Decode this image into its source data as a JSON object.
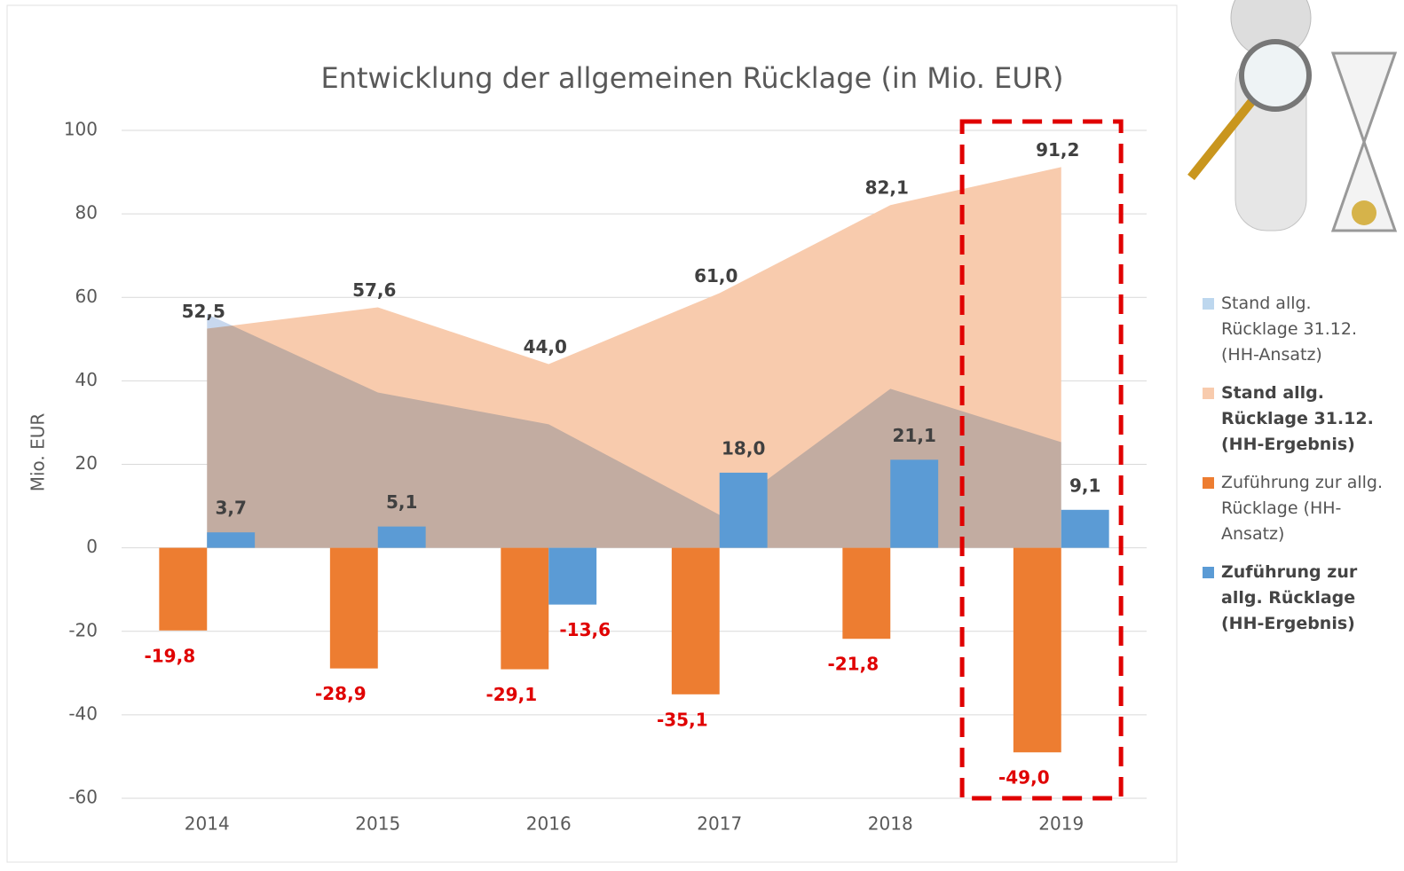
{
  "chart_data": {
    "type": "bar-area",
    "title": "Entwicklung der allgemeinen Rücklage (in Mio. EUR)",
    "y_label": "Mio. EUR",
    "categories": [
      "2014",
      "2015",
      "2016",
      "2017",
      "2018",
      "2019"
    ],
    "ylim": [
      -60,
      100
    ],
    "yticks": [
      -60,
      -40,
      -20,
      0,
      20,
      40,
      60,
      80,
      100
    ],
    "grid": true,
    "series": [
      {
        "name": "Stand allg. Rücklage 31.12. (HH-Ansatz)",
        "kind": "area",
        "color": "#c8d8ee",
        "values": [
          56,
          37.2,
          29.6,
          7.9,
          38.1,
          25.3
        ]
      },
      {
        "name": "Stand allg. Rücklage 31.12. (HH-Ergebnis)",
        "kind": "area",
        "color": "#f8cbad",
        "values": [
          52.5,
          57.6,
          44.0,
          61.0,
          82.1,
          91.2
        ],
        "value_labels": [
          "52,5",
          "57,6",
          "44,0",
          "61,0",
          "82,1",
          "91,2"
        ]
      },
      {
        "name": "Zuführung zur allg. Rücklage (HH-Ansatz)",
        "kind": "bar",
        "color": "#ed7d31",
        "values": [
          -19.8,
          -28.9,
          -29.1,
          -35.1,
          -21.8,
          -49.0
        ],
        "value_labels": [
          "-19,8",
          "-28,9",
          "-29,1",
          "-35,1",
          "-21,8",
          "-49,0"
        ]
      },
      {
        "name": "Zuführung zur allg. Rücklage (HH-Ergebnis)",
        "kind": "bar",
        "color": "#5b9bd5",
        "values": [
          3.7,
          5.1,
          -13.6,
          18.0,
          21.1,
          9.1
        ],
        "value_labels": [
          "3,7",
          "5,1",
          "-13,6",
          "18,0",
          "21,1",
          "9,1"
        ]
      }
    ]
  }
}
